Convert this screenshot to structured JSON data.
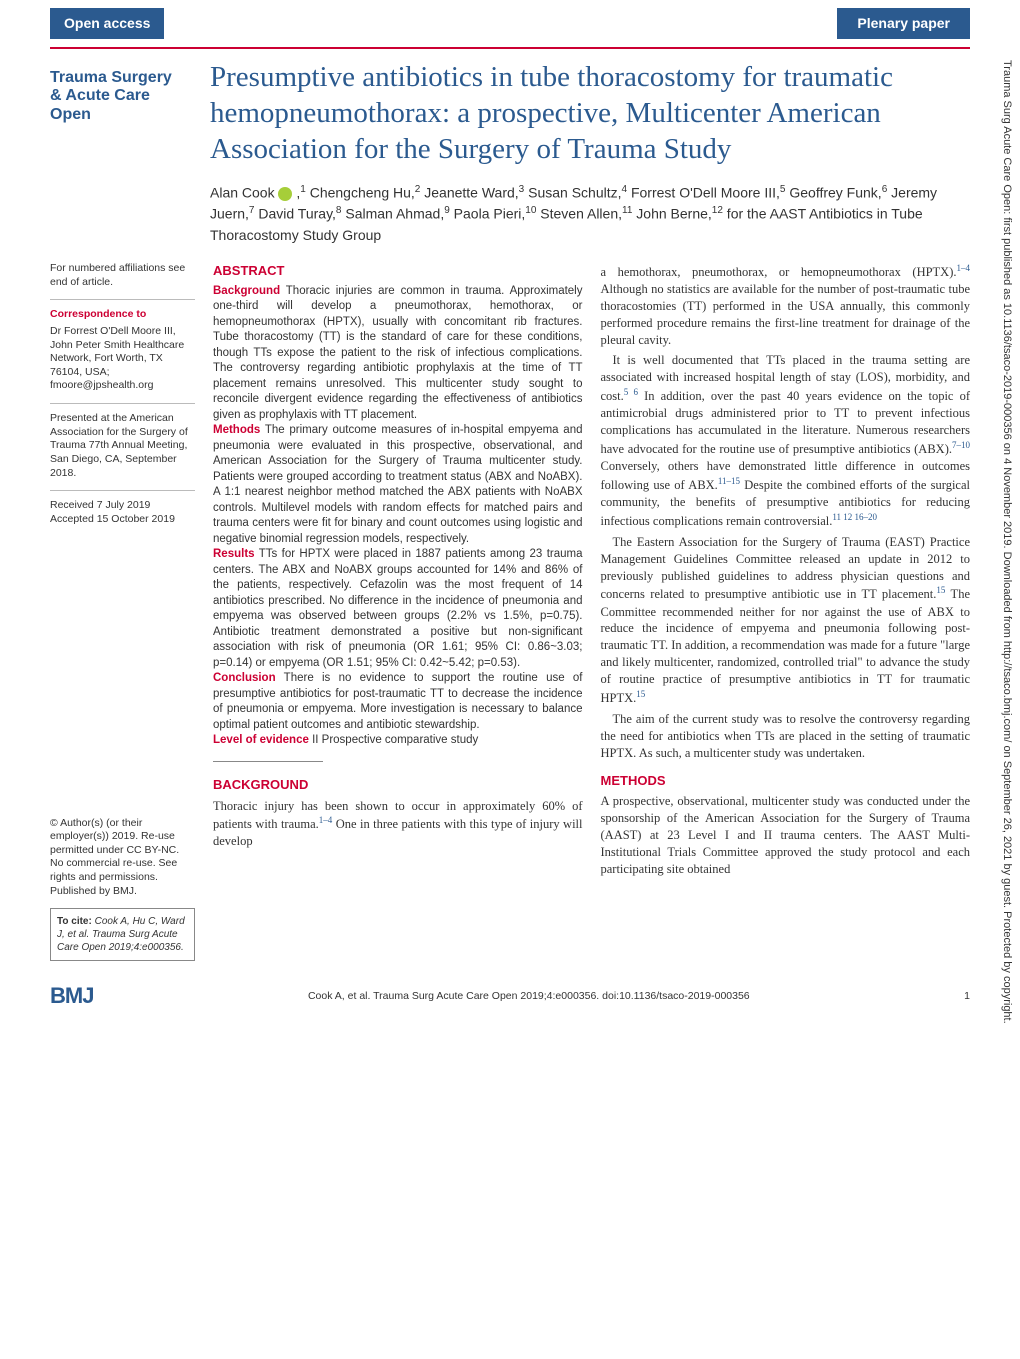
{
  "header": {
    "open_access_label": "Open access",
    "section_label": "Plenary paper",
    "journal_name_line1": "Trauma Surgery",
    "journal_name_line2": "& Acute Care Open"
  },
  "title": "Presumptive antibiotics in tube thoracostomy for traumatic hemopneumothorax: a prospective, Multicenter American Association for the Surgery of Trauma Study",
  "authors_html": "Alan Cook <span class='orcid-icon' data-name='orcid-icon' data-interactable='false'></span> ,<sup>1</sup> Chengcheng Hu,<sup>2</sup> Jeanette Ward,<sup>3</sup> Susan Schultz,<sup>4</sup> Forrest O'Dell Moore III,<sup>5</sup> Geoffrey Funk,<sup>6</sup> Jeremy Juern,<sup>7</sup> David Turay,<sup>8</sup> Salman Ahmad,<sup>9</sup> Paola Pieri,<sup>10</sup> Steven Allen,<sup>11</sup> John Berne,<sup>12</sup> for the AAST Antibiotics in Tube Thoracostomy Study Group",
  "sidebar": {
    "affiliations_note": "For numbered affiliations see end of article.",
    "correspondence_heading": "Correspondence to",
    "correspondence_body": "Dr Forrest O'Dell Moore III, John Peter Smith Healthcare Network, Fort Worth, TX 76104, USA; fmoore@jpshealth.org",
    "presented_note": "Presented at the American Association for the Surgery of Trauma 77th Annual Meeting, San Diego, CA, September 2018.",
    "received": "Received 7 July 2019",
    "accepted": "Accepted 15 October 2019",
    "copyright": "© Author(s) (or their employer(s)) 2019. Re-use permitted under CC BY-NC. No commercial re-use. See rights and permissions. Published by BMJ.",
    "cite_label": "To cite:",
    "cite_body": "Cook A, Hu C, Ward J, et al. Trauma Surg Acute Care Open 2019;4:e000356."
  },
  "abstract": {
    "heading": "ABSTRACT",
    "background_label": "Background",
    "background_text": " Thoracic injuries are common in trauma. Approximately one-third will develop a pneumothorax, hemothorax, or hemopneumothorax (HPTX), usually with concomitant rib fractures. Tube thoracostomy (TT) is the standard of care for these conditions, though TTs expose the patient to the risk of infectious complications. The controversy regarding antibiotic prophylaxis at the time of TT placement remains unresolved. This multicenter study sought to reconcile divergent evidence regarding the effectiveness of antibiotics given as prophylaxis with TT placement.",
    "methods_label": "Methods",
    "methods_text": " The primary outcome measures of in-hospital empyema and pneumonia were evaluated in this prospective, observational, and American Association for the Surgery of Trauma multicenter study. Patients were grouped according to treatment status (ABX and NoABX). A 1:1 nearest neighbor method matched the ABX patients with NoABX controls. Multilevel models with random effects for matched pairs and trauma centers were fit for binary and count outcomes using logistic and negative binomial regression models, respectively.",
    "results_label": "Results",
    "results_text": " TTs for HPTX were placed in 1887 patients among 23 trauma centers. The ABX and NoABX groups accounted for 14% and 86% of the patients, respectively. Cefazolin was the most frequent of 14 antibiotics prescribed. No difference in the incidence of pneumonia and empyema was observed between groups (2.2% vs 1.5%, p=0.75). Antibiotic treatment demonstrated a positive but non-significant association with risk of pneumonia (OR 1.61; 95% CI: 0.86~3.03; p=0.14) or empyema (OR 1.51; 95% CI: 0.42~5.42; p=0.53).",
    "conclusion_label": "Conclusion",
    "conclusion_text": " There is no evidence to support the routine use of presumptive antibiotics for post-traumatic TT to decrease the incidence of pneumonia or empyema. More investigation is necessary to balance optimal patient outcomes and antibiotic stewardship.",
    "level_label": "Level of evidence",
    "level_text": " II Prospective comparative study"
  },
  "background": {
    "heading": "BACKGROUND",
    "p1": "Thoracic injury has been shown to occur in approximately 60% of patients with trauma.<span class='ref'>1–4</span> One in three patients with this type of injury will develop",
    "p2_start": "a hemothorax, pneumothorax, or hemopneumothorax (HPTX).<span class='ref'>1–4</span> Although no statistics are available for the number of post-traumatic tube thoracostomies (TT) performed in the USA annually, this commonly performed procedure remains the first-line treatment for drainage of the pleural cavity.",
    "p3": "It is well documented that TTs placed in the trauma setting are associated with increased hospital length of stay (LOS), morbidity, and cost.<span class='ref'>5 6</span> In addition, over the past 40 years evidence on the topic of antimicrobial drugs administered prior to TT to prevent infectious complications has accumulated in the literature. Numerous researchers have advocated for the routine use of presumptive antibiotics (ABX).<span class='ref'>7–10</span> Conversely, others have demonstrated little difference in outcomes following use of ABX.<span class='ref'>11–15</span> Despite the combined efforts of the surgical community, the benefits of presumptive antibiotics for reducing infectious complications remain controversial.<span class='ref'>11 12 16–20</span>",
    "p4": "The Eastern Association for the Surgery of Trauma (EAST) Practice Management Guidelines Committee released an update in 2012 to previously published guidelines to address physician questions and concerns related to presumptive antibiotic use in TT placement.<span class='ref'>15</span> The Committee recommended neither for nor against the use of ABX to reduce the incidence of empyema and pneumonia following post-traumatic TT. In addition, a recommendation was made for a future \"large and likely multicenter, randomized, controlled trial\" to advance the study of routine practice of presumptive antibiotics in TT for traumatic HPTX.<span class='ref'>15</span>",
    "p5": "The aim of the current study was to resolve the controversy regarding the need for antibiotics when TTs are placed in the setting of traumatic HPTX. As such, a multicenter study was undertaken."
  },
  "methods": {
    "heading": "METHODS",
    "p1": "A prospective, observational, multicenter study was conducted under the sponsorship of the American Association for the Surgery of Trauma (AAST) at 23 Level I and II trauma centers. The AAST Multi-Institutional Trials Committee approved the study protocol and each participating site obtained"
  },
  "footer": {
    "bmj_logo": "BMJ",
    "citation_line": "Cook A, et al. Trauma Surg Acute Care Open 2019;4:e000356. doi:10.1136/tsaco-2019-000356",
    "page_number": "1"
  },
  "watermark": "Trauma Surg Acute Care Open: first published as 10.1136/tsaco-2019-000356 on 4 November 2019. Downloaded from http://tsaco.bmj.com/ on September 26, 2021 by guest. Protected by copyright.",
  "colors": {
    "brand_blue": "#2b5a8f",
    "accent_red": "#cc0033",
    "text_gray": "#333333",
    "background": "#ffffff",
    "orcid_green": "#a6ce39"
  }
}
